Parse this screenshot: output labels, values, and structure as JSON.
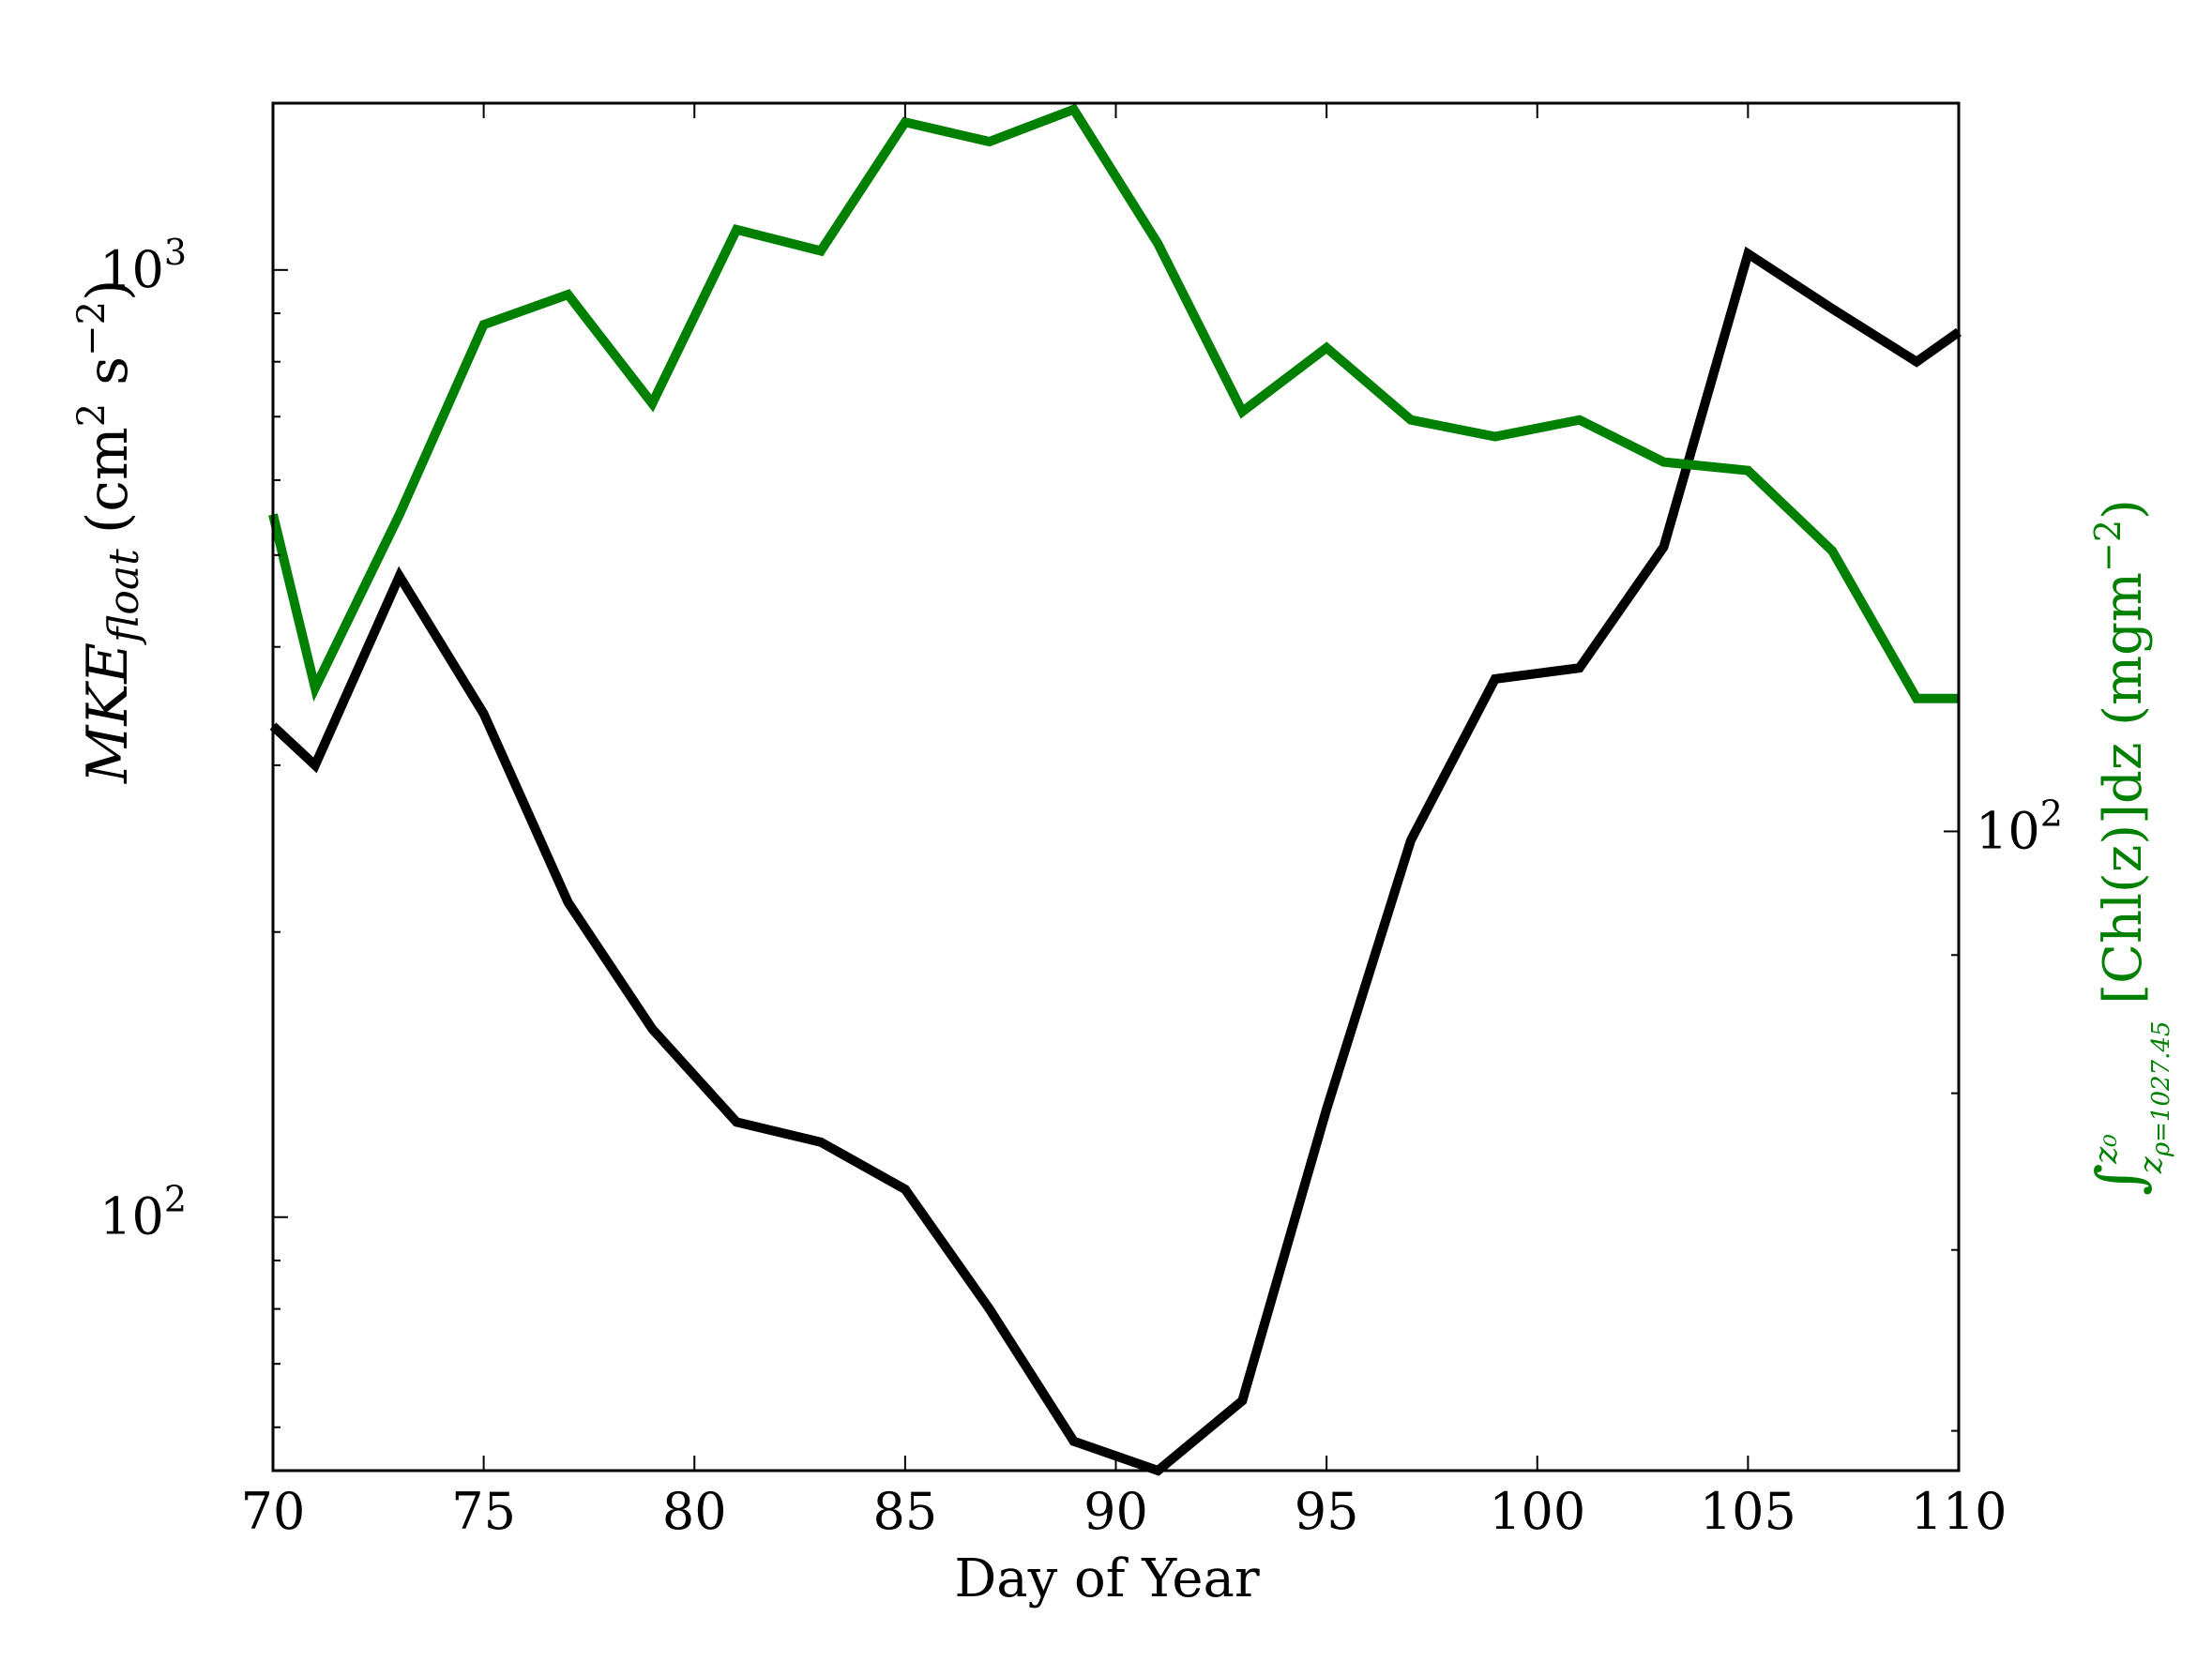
{
  "chart_data": {
    "type": "line",
    "xlabel": "Day of Year",
    "ylabel_left": {
      "main": "MKE",
      "sub": "float",
      "unit_prefix": "(cm",
      "unit_exp1": "2",
      "unit_mid": " s",
      "unit_exp2": "−2",
      "unit_suffix": ")"
    },
    "ylabel_right": {
      "integral": "∫",
      "upper": "z₀",
      "lower": "z",
      "lower_sub": "ρ=1027.45",
      "text": " [Chl(z)]dz (mgm",
      "exp": "−2",
      "suffix": ")"
    },
    "xlim": [
      70,
      110
    ],
    "xticks": [
      "70",
      "75",
      "80",
      "85",
      "90",
      "95",
      "100",
      "105",
      "110"
    ],
    "y_left": {
      "scale": "log",
      "ylim": [
        54,
        1500
      ],
      "major_ticks": [
        100,
        1000
      ],
      "major_labels": [
        "10",
        "10"
      ],
      "major_exps": [
        "2",
        "3"
      ]
    },
    "y_right": {
      "scale": "log",
      "ylim": [
        58,
        186
      ],
      "major_ticks": [
        100
      ],
      "major_labels": [
        "10"
      ],
      "major_exps": [
        "2"
      ]
    },
    "grid": false,
    "series": [
      {
        "axis": "left",
        "color": "#000000",
        "x": [
          70,
          71,
          73,
          75,
          77,
          79,
          81,
          83,
          85,
          87,
          89,
          91,
          93,
          95,
          97,
          99,
          101,
          103,
          105,
          107,
          109,
          110
        ],
        "y": [
          330,
          300,
          475,
          340,
          215,
          158,
          126,
          120,
          107,
          80,
          58,
          54,
          64,
          130,
          250,
          370,
          380,
          510,
          1040,
          910,
          800,
          860
        ]
      },
      {
        "axis": "right",
        "color": "#008000",
        "x": [
          70,
          71,
          73,
          75,
          77,
          79,
          81,
          83,
          85,
          87,
          89,
          91,
          93,
          95,
          97,
          99,
          101,
          103,
          105,
          107,
          109,
          110
        ],
        "y": [
          131,
          113,
          131,
          154,
          158,
          144,
          167,
          164,
          183,
          180,
          185,
          165,
          143,
          151,
          142,
          140,
          142,
          137,
          136,
          127,
          112,
          112
        ]
      }
    ]
  }
}
